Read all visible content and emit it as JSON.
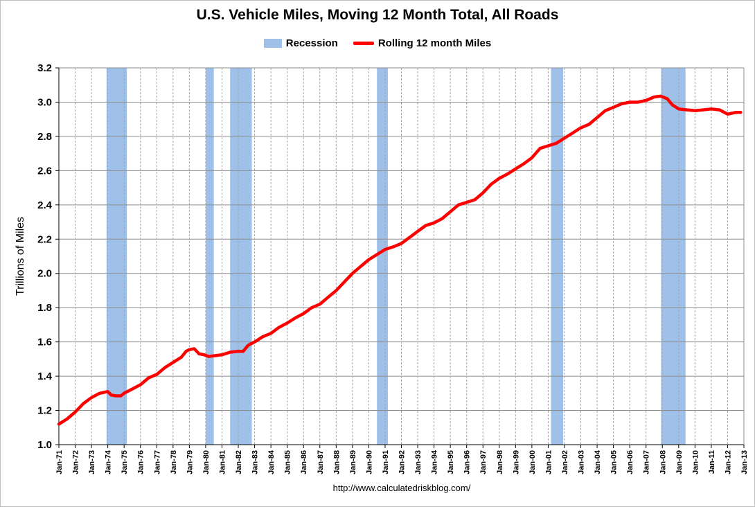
{
  "chart_data": {
    "type": "line",
    "title": "U.S. Vehicle Miles, Moving 12 Month Total, All Roads",
    "ylabel": "Trillions of Miles",
    "xlabel": "",
    "ylim": [
      1.0,
      3.2
    ],
    "yticks": [
      "1.0",
      "1.2",
      "1.4",
      "1.6",
      "1.8",
      "2.0",
      "2.2",
      "2.4",
      "2.6",
      "2.8",
      "3.0",
      "3.2"
    ],
    "xlim": [
      1971.0,
      2013.0
    ],
    "xticks": [
      "Jan-71",
      "Jan-72",
      "Jan-73",
      "Jan-74",
      "Jan-75",
      "Jan-76",
      "Jan-77",
      "Jan-78",
      "Jan-79",
      "Jan-80",
      "Jan-81",
      "Jan-82",
      "Jan-83",
      "Jan-84",
      "Jan-85",
      "Jan-86",
      "Jan-87",
      "Jan-88",
      "Jan-89",
      "Jan-90",
      "Jan-91",
      "Jan-92",
      "Jan-93",
      "Jan-94",
      "Jan-95",
      "Jan-96",
      "Jan-97",
      "Jan-98",
      "Jan-99",
      "Jan-00",
      "Jan-01",
      "Jan-02",
      "Jan-03",
      "Jan-04",
      "Jan-05",
      "Jan-06",
      "Jan-07",
      "Jan-08",
      "Jan-09",
      "Jan-10",
      "Jan-11",
      "Jan-12",
      "Jan-13"
    ],
    "grid": true,
    "legend_position": "top-center",
    "colors": {
      "recession": "#9fc0e9",
      "miles_line": "#ff0000",
      "grid": "#a6a6a6"
    },
    "recessions": {
      "name": "Recession",
      "periods": [
        [
          1973.92,
          1975.17
        ],
        [
          1980.0,
          1980.5
        ],
        [
          1981.5,
          1982.83
        ],
        [
          1990.5,
          1991.17
        ],
        [
          2001.17,
          2001.92
        ],
        [
          2007.92,
          2009.42
        ]
      ]
    },
    "series": [
      {
        "name": "Rolling 12 month Miles",
        "x": [
          1971.0,
          1971.5,
          1972.0,
          1972.5,
          1973.0,
          1973.5,
          1974.0,
          1974.2,
          1974.5,
          1974.8,
          1975.0,
          1975.5,
          1976.0,
          1976.5,
          1977.0,
          1977.5,
          1978.0,
          1978.5,
          1978.8,
          1979.0,
          1979.3,
          1979.6,
          1979.9,
          1980.2,
          1980.6,
          1981.0,
          1981.5,
          1982.0,
          1982.3,
          1982.6,
          1983.0,
          1983.5,
          1984.0,
          1984.5,
          1985.0,
          1985.5,
          1986.0,
          1986.5,
          1987.0,
          1987.5,
          1988.0,
          1988.5,
          1989.0,
          1989.5,
          1990.0,
          1990.5,
          1991.0,
          1991.5,
          1992.0,
          1992.5,
          1993.0,
          1993.5,
          1994.0,
          1994.5,
          1995.0,
          1995.5,
          1996.0,
          1996.5,
          1997.0,
          1997.5,
          1998.0,
          1998.5,
          1999.0,
          1999.5,
          2000.0,
          2000.5,
          2001.0,
          2001.5,
          2002.0,
          2002.5,
          2003.0,
          2003.5,
          2004.0,
          2004.5,
          2005.0,
          2005.5,
          2006.0,
          2006.5,
          2007.0,
          2007.5,
          2007.9,
          2008.3,
          2008.6,
          2009.0,
          2009.5,
          2010.0,
          2010.5,
          2011.0,
          2011.5,
          2012.0,
          2012.5,
          2012.8
        ],
        "values": [
          1.12,
          1.15,
          1.19,
          1.24,
          1.275,
          1.3,
          1.31,
          1.29,
          1.285,
          1.285,
          1.3,
          1.325,
          1.35,
          1.39,
          1.41,
          1.45,
          1.48,
          1.51,
          1.545,
          1.555,
          1.56,
          1.53,
          1.525,
          1.515,
          1.52,
          1.525,
          1.54,
          1.545,
          1.545,
          1.58,
          1.6,
          1.63,
          1.65,
          1.685,
          1.71,
          1.74,
          1.765,
          1.8,
          1.82,
          1.86,
          1.9,
          1.95,
          2.0,
          2.04,
          2.08,
          2.11,
          2.14,
          2.155,
          2.175,
          2.21,
          2.245,
          2.28,
          2.295,
          2.32,
          2.36,
          2.4,
          2.415,
          2.43,
          2.47,
          2.52,
          2.555,
          2.58,
          2.61,
          2.64,
          2.675,
          2.73,
          2.745,
          2.76,
          2.79,
          2.82,
          2.85,
          2.87,
          2.91,
          2.95,
          2.97,
          2.99,
          3.0,
          3.0,
          3.01,
          3.03,
          3.035,
          3.02,
          2.985,
          2.96,
          2.955,
          2.95,
          2.955,
          2.96,
          2.955,
          2.93,
          2.94,
          2.94
        ]
      }
    ],
    "source": "http://www.calculatedriskblog.com/"
  }
}
